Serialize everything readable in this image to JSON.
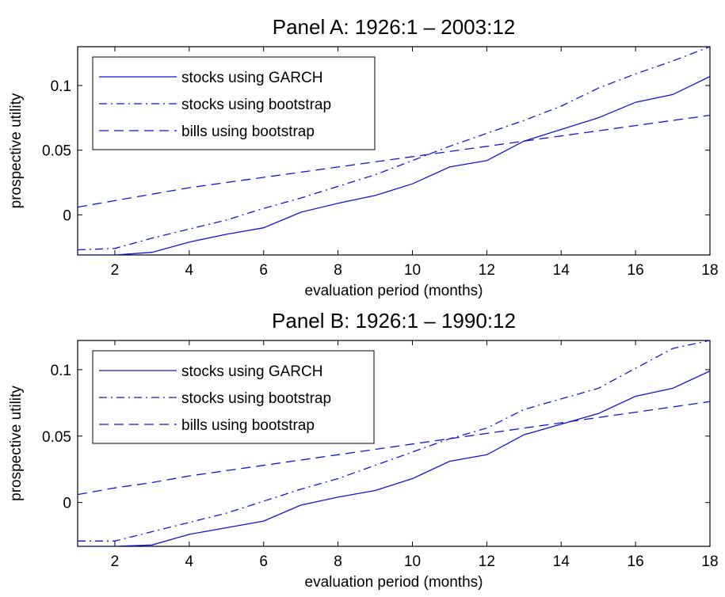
{
  "colors": {
    "series": "#1414d4",
    "axes": "#000000",
    "background": "#ffffff"
  },
  "chart_data": [
    {
      "type": "line",
      "title": "Panel A: 1926:1 – 2003:12",
      "xlabel": "evaluation period (months)",
      "ylabel": "prospective utility",
      "xlim": [
        1,
        18
      ],
      "ylim": [
        -0.031,
        0.13
      ],
      "xticks": [
        2,
        4,
        6,
        8,
        10,
        12,
        14,
        16,
        18
      ],
      "yticks": [
        0,
        0.05,
        0.1
      ],
      "ytick_labels": [
        "0",
        "0.05",
        "0.1"
      ],
      "grid": false,
      "legend_position": "top-left",
      "x": [
        1,
        2,
        3,
        4,
        5,
        6,
        7,
        8,
        9,
        10,
        11,
        12,
        13,
        14,
        15,
        16,
        17,
        18
      ],
      "series": [
        {
          "name": "stocks using GARCH",
          "style": "solid",
          "values": [
            -0.031,
            -0.031,
            -0.029,
            -0.021,
            -0.015,
            -0.01,
            0.002,
            0.009,
            0.015,
            0.024,
            0.037,
            0.042,
            0.057,
            0.066,
            0.075,
            0.087,
            0.093,
            0.107
          ]
        },
        {
          "name": "stocks using bootstrap",
          "style": "dashdot",
          "values": [
            -0.027,
            -0.026,
            -0.018,
            -0.011,
            -0.004,
            0.005,
            0.013,
            0.022,
            0.031,
            0.042,
            0.053,
            0.063,
            0.073,
            0.084,
            0.098,
            0.109,
            0.119,
            0.13
          ]
        },
        {
          "name": "bills using bootstrap",
          "style": "dashed",
          "values": [
            0.006,
            0.011,
            0.016,
            0.021,
            0.025,
            0.029,
            0.033,
            0.037,
            0.041,
            0.045,
            0.049,
            0.053,
            0.057,
            0.061,
            0.065,
            0.069,
            0.073,
            0.077
          ]
        }
      ]
    },
    {
      "type": "line",
      "title": "Panel B: 1926:1 – 1990:12",
      "xlabel": "evaluation period (months)",
      "ylabel": "prospective utility",
      "xlim": [
        1,
        18
      ],
      "ylim": [
        -0.033,
        0.122
      ],
      "xticks": [
        2,
        4,
        6,
        8,
        10,
        12,
        14,
        16,
        18
      ],
      "yticks": [
        0,
        0.05,
        0.1
      ],
      "ytick_labels": [
        "0",
        "0.05",
        "0.1"
      ],
      "grid": false,
      "legend_position": "top-left",
      "x": [
        1,
        2,
        3,
        4,
        5,
        6,
        7,
        8,
        9,
        10,
        11,
        12,
        13,
        14,
        15,
        16,
        17,
        18
      ],
      "series": [
        {
          "name": "stocks using GARCH",
          "style": "solid",
          "values": [
            -0.033,
            -0.033,
            -0.032,
            -0.024,
            -0.019,
            -0.014,
            -0.002,
            0.004,
            0.009,
            0.018,
            0.031,
            0.036,
            0.051,
            0.059,
            0.067,
            0.08,
            0.086,
            0.099
          ]
        },
        {
          "name": "stocks using bootstrap",
          "style": "dashdot",
          "values": [
            -0.029,
            -0.029,
            -0.022,
            -0.015,
            -0.008,
            0.001,
            0.01,
            0.018,
            0.028,
            0.038,
            0.048,
            0.056,
            0.07,
            0.078,
            0.086,
            0.101,
            0.116,
            0.122
          ]
        },
        {
          "name": "bills using bootstrap",
          "style": "dashed",
          "values": [
            0.006,
            0.011,
            0.015,
            0.02,
            0.024,
            0.028,
            0.032,
            0.036,
            0.04,
            0.044,
            0.048,
            0.052,
            0.056,
            0.06,
            0.064,
            0.068,
            0.072,
            0.076
          ]
        }
      ]
    }
  ]
}
